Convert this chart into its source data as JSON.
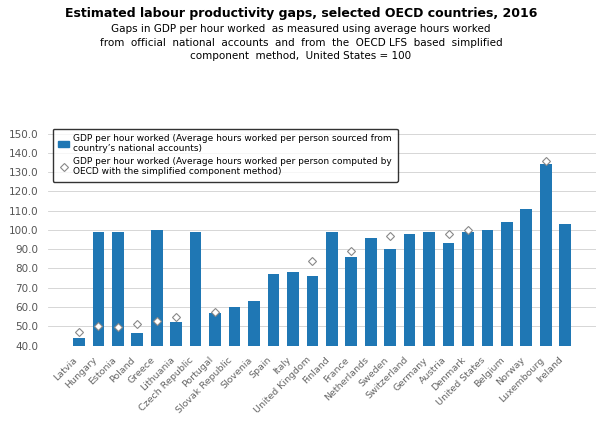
{
  "title": "Estimated labour productivity gaps, selected OECD countries, 2016",
  "subtitle": "Gaps in GDP per hour worked  as measured using average hours worked\nfrom  official  national  accounts  and  from  the  OECD LFS  based  simplified\ncomponent  method,  United States = 100",
  "legend_bar": "GDP per hour worked (Average hours worked per person sourced from\ncountry’s national accounts)",
  "legend_diamond": "GDP per hour worked (Average hours worked per person computed by\nOECD with the simplified component method)",
  "categories": [
    "Latvia",
    "Hungary",
    "Estonia",
    "Poland",
    "Greece",
    "Lithuania",
    "Czech Republic",
    "Portugal",
    "Slovak Republic",
    "Slovenia",
    "Spain",
    "Italy",
    "United Kingdom",
    "Finland",
    "France",
    "Netherlands",
    "Sweden",
    "Switzerland",
    "Germany",
    "Austria",
    "Denmark",
    "United States",
    "Belgium",
    "Norway",
    "Luxembourg",
    "Ireland"
  ],
  "bar_values": [
    44,
    99,
    99,
    46.5,
    100,
    52,
    99,
    57,
    60,
    63,
    77,
    78,
    76,
    99,
    86,
    96,
    90,
    98,
    99,
    93,
    99,
    100,
    104,
    111,
    134,
    103
  ],
  "diamond_values": [
    47,
    50,
    49.5,
    51,
    53,
    55,
    null,
    57.5,
    null,
    null,
    null,
    null,
    84,
    null,
    89,
    null,
    97,
    null,
    null,
    98,
    100,
    null,
    null,
    null,
    136,
    null
  ],
  "bar_color": "#1f77b4",
  "background_color": "#ffffff",
  "ylim": [
    40,
    155
  ],
  "yticks": [
    40.0,
    50.0,
    60.0,
    70.0,
    80.0,
    90.0,
    100.0,
    110.0,
    120.0,
    130.0,
    140.0,
    150.0
  ]
}
